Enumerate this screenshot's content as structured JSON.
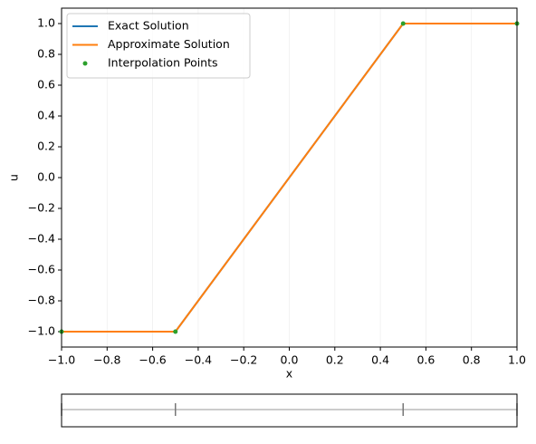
{
  "chart_data": [
    {
      "type": "line",
      "x_label": "x",
      "y_label": "u",
      "x": [
        -1,
        -0.5,
        0.5,
        1
      ],
      "series": [
        {
          "name": "Exact Solution",
          "color": "#1f77b4",
          "style": "line",
          "values": [
            -1,
            -1,
            1,
            1
          ]
        },
        {
          "name": "Approximate Solution",
          "color": "#ff7f0e",
          "style": "line",
          "values": [
            -1,
            -1,
            1,
            1
          ]
        },
        {
          "name": "Interpolation Points",
          "color": "#2ca02c",
          "style": "markers",
          "values": [
            -1,
            -1,
            1,
            1
          ]
        }
      ],
      "xlim": [
        -1,
        1
      ],
      "xticks": [
        {
          "value": -1,
          "label": "−1.0"
        },
        {
          "value": -0.8,
          "label": "−0.8"
        },
        {
          "value": -0.6,
          "label": "−0.6"
        },
        {
          "value": -0.4,
          "label": "−0.4"
        },
        {
          "value": -0.2,
          "label": "−0.2"
        },
        {
          "value": 0,
          "label": "0.0"
        },
        {
          "value": 0.2,
          "label": "0.2"
        },
        {
          "value": 0.4,
          "label": "0.4"
        },
        {
          "value": 0.6,
          "label": "0.6"
        },
        {
          "value": 0.8,
          "label": "0.8"
        },
        {
          "value": 1,
          "label": "1.0"
        }
      ],
      "ylim": [
        -1.1,
        1.1
      ],
      "yticks": [
        {
          "value": -1,
          "label": "−1.0"
        },
        {
          "value": -0.8,
          "label": "−0.8"
        },
        {
          "value": -0.6,
          "label": "−0.6"
        },
        {
          "value": -0.4,
          "label": "−0.4"
        },
        {
          "value": -0.2,
          "label": "−0.2"
        },
        {
          "value": 0,
          "label": "0.0"
        },
        {
          "value": 0.2,
          "label": "0.2"
        },
        {
          "value": 0.4,
          "label": "0.4"
        },
        {
          "value": 0.6,
          "label": "0.6"
        },
        {
          "value": 0.8,
          "label": "0.8"
        },
        {
          "value": 1,
          "label": "1.0"
        }
      ],
      "x_grid": true,
      "legend": "upper left"
    },
    {
      "type": "strip",
      "x": [
        -1,
        -0.5,
        0.5,
        1
      ],
      "xlim": [
        -1,
        1
      ]
    }
  ]
}
